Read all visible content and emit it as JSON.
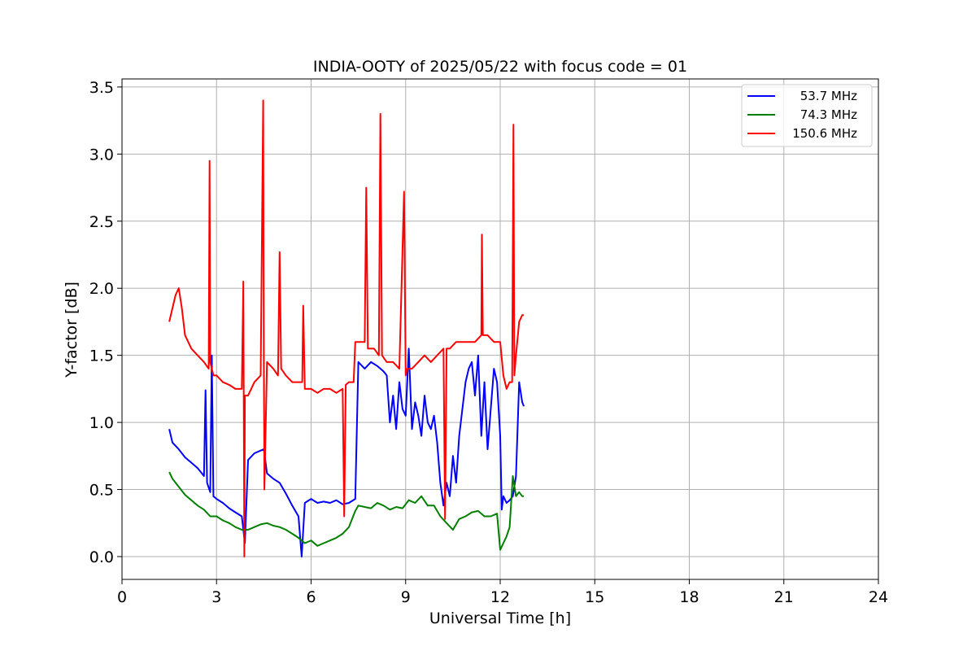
{
  "chart_data": {
    "type": "line",
    "title": "INDIA-OOTY of 2025/05/22 with focus code = 01",
    "xlabel": "Universal Time [h]",
    "ylabel": "Y-factor [dB]",
    "xlim": [
      0,
      24
    ],
    "ylim": [
      -0.17,
      3.56
    ],
    "xticks": [
      0,
      3,
      6,
      9,
      12,
      15,
      18,
      21,
      24
    ],
    "yticks": [
      0.0,
      0.5,
      1.0,
      1.5,
      2.0,
      2.5,
      3.0,
      3.5
    ],
    "xtick_labels": [
      "0",
      "3",
      "6",
      "9",
      "12",
      "15",
      "18",
      "21",
      "24"
    ],
    "ytick_labels": [
      "0.0",
      "0.5",
      "1.0",
      "1.5",
      "2.0",
      "2.5",
      "3.0",
      "3.5"
    ],
    "grid": true,
    "legend_position": "top-right",
    "series": [
      {
        "name": "53.7 MHz",
        "color": "#0000ff",
        "x": [
          1.5,
          1.6,
          1.8,
          2.0,
          2.2,
          2.4,
          2.6,
          2.65,
          2.7,
          2.8,
          2.85,
          2.9,
          3.0,
          3.2,
          3.4,
          3.6,
          3.8,
          3.9,
          4.0,
          4.2,
          4.4,
          4.5,
          4.6,
          4.8,
          5.0,
          5.2,
          5.4,
          5.6,
          5.7,
          5.8,
          6.0,
          6.2,
          6.4,
          6.6,
          6.8,
          7.0,
          7.2,
          7.4,
          7.5,
          7.7,
          7.9,
          8.1,
          8.3,
          8.4,
          8.5,
          8.6,
          8.7,
          8.8,
          8.9,
          9.0,
          9.1,
          9.2,
          9.3,
          9.4,
          9.5,
          9.6,
          9.7,
          9.8,
          9.9,
          10.0,
          10.1,
          10.2,
          10.3,
          10.4,
          10.5,
          10.6,
          10.7,
          10.8,
          10.9,
          11.0,
          11.1,
          11.2,
          11.3,
          11.4,
          11.5,
          11.6,
          11.7,
          11.8,
          11.9,
          12.0,
          12.05,
          12.1,
          12.2,
          12.3,
          12.4,
          12.5,
          12.6,
          12.7,
          12.75
        ],
        "y": [
          0.95,
          0.85,
          0.8,
          0.74,
          0.7,
          0.66,
          0.6,
          1.24,
          0.55,
          0.48,
          1.5,
          0.45,
          0.43,
          0.4,
          0.36,
          0.33,
          0.3,
          0.1,
          0.72,
          0.77,
          0.79,
          0.8,
          0.62,
          0.58,
          0.55,
          0.47,
          0.38,
          0.3,
          0.0,
          0.4,
          0.43,
          0.4,
          0.41,
          0.4,
          0.42,
          0.39,
          0.4,
          0.43,
          1.45,
          1.4,
          1.45,
          1.42,
          1.38,
          1.35,
          1.0,
          1.2,
          0.95,
          1.3,
          1.1,
          1.05,
          1.55,
          0.95,
          1.15,
          1.05,
          0.9,
          1.2,
          1.0,
          0.95,
          1.05,
          0.85,
          0.55,
          0.38,
          0.55,
          0.45,
          0.75,
          0.55,
          0.9,
          1.1,
          1.3,
          1.4,
          1.45,
          1.2,
          1.5,
          0.9,
          1.3,
          0.8,
          1.1,
          1.4,
          1.3,
          0.9,
          0.35,
          0.45,
          0.4,
          0.42,
          0.45,
          0.6,
          1.3,
          1.15,
          1.12
        ]
      },
      {
        "name": "74.3 MHz",
        "color": "#008000",
        "x": [
          1.5,
          1.6,
          1.8,
          2.0,
          2.2,
          2.4,
          2.6,
          2.8,
          3.0,
          3.2,
          3.4,
          3.6,
          3.8,
          4.0,
          4.2,
          4.4,
          4.6,
          4.8,
          5.0,
          5.2,
          5.4,
          5.6,
          5.7,
          5.8,
          6.0,
          6.2,
          6.4,
          6.6,
          6.8,
          7.0,
          7.2,
          7.4,
          7.5,
          7.7,
          7.9,
          8.1,
          8.3,
          8.5,
          8.7,
          8.9,
          9.1,
          9.3,
          9.5,
          9.7,
          9.9,
          10.1,
          10.3,
          10.5,
          10.7,
          10.9,
          11.1,
          11.3,
          11.5,
          11.7,
          11.9,
          12.0,
          12.1,
          12.2,
          12.3,
          12.4,
          12.5,
          12.6,
          12.7,
          12.75
        ],
        "y": [
          0.63,
          0.58,
          0.52,
          0.46,
          0.42,
          0.38,
          0.35,
          0.3,
          0.3,
          0.27,
          0.25,
          0.22,
          0.2,
          0.2,
          0.22,
          0.24,
          0.25,
          0.23,
          0.22,
          0.2,
          0.17,
          0.14,
          0.12,
          0.1,
          0.12,
          0.08,
          0.1,
          0.12,
          0.14,
          0.17,
          0.22,
          0.34,
          0.38,
          0.37,
          0.36,
          0.4,
          0.38,
          0.35,
          0.37,
          0.36,
          0.42,
          0.4,
          0.45,
          0.38,
          0.38,
          0.3,
          0.25,
          0.2,
          0.28,
          0.3,
          0.33,
          0.34,
          0.3,
          0.3,
          0.32,
          0.05,
          0.1,
          0.15,
          0.22,
          0.6,
          0.45,
          0.48,
          0.45,
          0.45
        ]
      },
      {
        "name": "150.6 MHz",
        "color": "#ff0000",
        "x": [
          1.5,
          1.6,
          1.7,
          1.8,
          1.9,
          2.0,
          2.1,
          2.2,
          2.4,
          2.6,
          2.75,
          2.78,
          2.8,
          2.9,
          3.0,
          3.2,
          3.4,
          3.6,
          3.8,
          3.85,
          3.88,
          3.9,
          4.0,
          4.2,
          4.4,
          4.48,
          4.5,
          4.52,
          4.6,
          4.8,
          4.95,
          5.0,
          5.05,
          5.2,
          5.4,
          5.6,
          5.72,
          5.75,
          5.8,
          6.0,
          6.2,
          6.4,
          6.6,
          6.8,
          7.0,
          7.05,
          7.1,
          7.2,
          7.35,
          7.4,
          7.6,
          7.7,
          7.75,
          7.8,
          8.0,
          8.15,
          8.2,
          8.25,
          8.4,
          8.6,
          8.8,
          8.95,
          9.0,
          9.05,
          9.2,
          9.4,
          9.6,
          9.8,
          10.0,
          10.2,
          10.25,
          10.3,
          10.4,
          10.6,
          10.8,
          11.0,
          11.2,
          11.4,
          11.42,
          11.45,
          11.6,
          11.8,
          12.0,
          12.1,
          12.2,
          12.3,
          12.38,
          12.42,
          12.45,
          12.5,
          12.6,
          12.7,
          12.75
        ],
        "y": [
          1.75,
          1.85,
          1.95,
          2.0,
          1.85,
          1.65,
          1.6,
          1.55,
          1.5,
          1.45,
          1.4,
          2.95,
          1.45,
          1.35,
          1.35,
          1.3,
          1.28,
          1.25,
          1.25,
          2.05,
          0.0,
          1.2,
          1.2,
          1.3,
          1.35,
          3.4,
          1.45,
          0.5,
          1.45,
          1.4,
          1.35,
          2.27,
          1.4,
          1.35,
          1.3,
          1.3,
          1.3,
          1.87,
          1.25,
          1.25,
          1.22,
          1.25,
          1.25,
          1.22,
          1.25,
          0.3,
          1.28,
          1.3,
          1.3,
          1.6,
          1.6,
          1.6,
          2.75,
          1.55,
          1.55,
          1.5,
          3.3,
          1.5,
          1.45,
          1.45,
          1.4,
          2.72,
          1.35,
          1.4,
          1.4,
          1.45,
          1.5,
          1.45,
          1.5,
          1.55,
          0.28,
          1.55,
          1.55,
          1.6,
          1.6,
          1.6,
          1.6,
          1.65,
          2.4,
          1.65,
          1.65,
          1.6,
          1.6,
          1.35,
          1.25,
          1.3,
          1.3,
          3.22,
          1.35,
          1.5,
          1.75,
          1.8,
          1.8
        ]
      }
    ]
  }
}
